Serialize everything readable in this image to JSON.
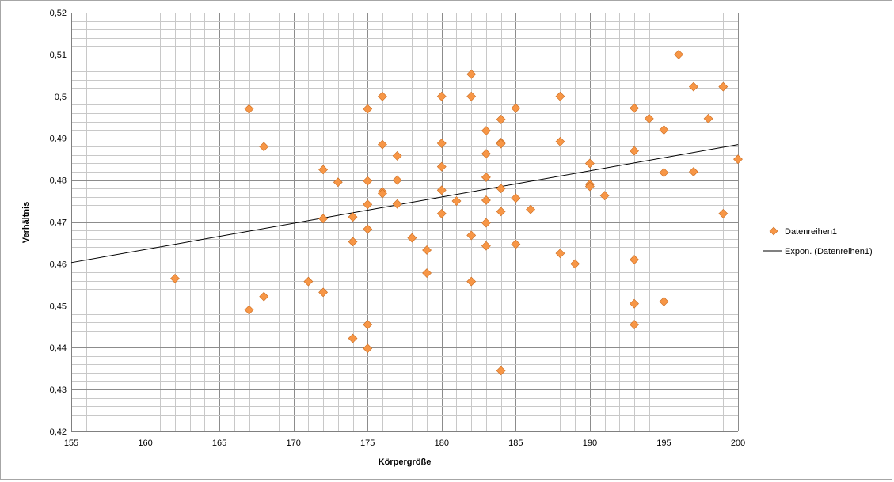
{
  "chart_data": {
    "type": "scatter",
    "title": "",
    "xlabel": "Körpergröße",
    "ylabel": "Verhältnis",
    "xlim": [
      155,
      200
    ],
    "ylim": [
      0.42,
      0.52
    ],
    "x_ticks": [
      155,
      160,
      165,
      170,
      175,
      180,
      185,
      190,
      195,
      200
    ],
    "x_tick_labels": [
      "155",
      "160",
      "165",
      "170",
      "175",
      "180",
      "185",
      "190",
      "195",
      "200"
    ],
    "y_ticks": [
      0.42,
      0.43,
      0.44,
      0.45,
      0.46,
      0.47,
      0.48,
      0.49,
      0.5,
      0.51,
      0.52
    ],
    "y_tick_labels": [
      "0,42",
      "0,43",
      "0,44",
      "0,45",
      "0,46",
      "0,47",
      "0,48",
      "0,49",
      "0,5",
      "0,51",
      "0,52"
    ],
    "major_x_step": 5,
    "minor_x_step": 1,
    "major_y_step": 0.01,
    "minor_y_step": 0.002,
    "grid": true,
    "legend_position": "right",
    "series": [
      {
        "name": "Datenreihen1",
        "marker": "diamond",
        "color": "#f79646",
        "points": [
          [
            162,
            0.4565
          ],
          [
            167,
            0.497
          ],
          [
            167,
            0.449
          ],
          [
            168,
            0.488
          ],
          [
            168,
            0.4522
          ],
          [
            171,
            0.4558
          ],
          [
            172,
            0.4825
          ],
          [
            172,
            0.4708
          ],
          [
            172,
            0.4532
          ],
          [
            173,
            0.4795
          ],
          [
            174,
            0.4712
          ],
          [
            174,
            0.4653
          ],
          [
            174,
            0.4422
          ],
          [
            175,
            0.497
          ],
          [
            175,
            0.4798
          ],
          [
            175,
            0.4742
          ],
          [
            175,
            0.4683
          ],
          [
            175,
            0.4455
          ],
          [
            175,
            0.4398
          ],
          [
            176,
            0.5
          ],
          [
            176,
            0.4885
          ],
          [
            176,
            0.4772
          ],
          [
            176,
            0.4768
          ],
          [
            177,
            0.4858
          ],
          [
            177,
            0.48
          ],
          [
            177,
            0.4743
          ],
          [
            178,
            0.4662
          ],
          [
            179,
            0.4633
          ],
          [
            179,
            0.4578
          ],
          [
            180,
            0.5
          ],
          [
            180,
            0.4888
          ],
          [
            180,
            0.4832
          ],
          [
            180,
            0.4776
          ],
          [
            180,
            0.472
          ],
          [
            181,
            0.475
          ],
          [
            182,
            0.5053
          ],
          [
            182,
            0.5
          ],
          [
            182,
            0.4668
          ],
          [
            182,
            0.4558
          ],
          [
            183,
            0.4918
          ],
          [
            183,
            0.4863
          ],
          [
            183,
            0.4807
          ],
          [
            183,
            0.4752
          ],
          [
            183,
            0.4698
          ],
          [
            183,
            0.4643
          ],
          [
            184,
            0.4945
          ],
          [
            184,
            0.489
          ],
          [
            184,
            0.4887
          ],
          [
            184,
            0.478
          ],
          [
            184,
            0.4725
          ],
          [
            184,
            0.4345
          ],
          [
            185,
            0.4972
          ],
          [
            185,
            0.4757
          ],
          [
            185,
            0.4647
          ],
          [
            186,
            0.473
          ],
          [
            188,
            0.5
          ],
          [
            188,
            0.4892
          ],
          [
            188,
            0.4625
          ],
          [
            189,
            0.46
          ],
          [
            190,
            0.484
          ],
          [
            190,
            0.479
          ],
          [
            190,
            0.4785
          ],
          [
            191,
            0.4763
          ],
          [
            193,
            0.4972
          ],
          [
            193,
            0.487
          ],
          [
            193,
            0.461
          ],
          [
            193,
            0.4505
          ],
          [
            193,
            0.4455
          ],
          [
            194,
            0.4947
          ],
          [
            195,
            0.492
          ],
          [
            195,
            0.4818
          ],
          [
            195,
            0.451
          ],
          [
            196,
            0.51
          ],
          [
            197,
            0.5023
          ],
          [
            197,
            0.482
          ],
          [
            198,
            0.4947
          ],
          [
            199,
            0.5023
          ],
          [
            199,
            0.472
          ],
          [
            200,
            0.485
          ]
        ]
      }
    ],
    "trendline": {
      "name": "Expon. (Datenreihen1)",
      "type": "exponential",
      "color": "#000000",
      "start": [
        155,
        0.4603
      ],
      "end": [
        200,
        0.4885
      ]
    }
  },
  "legend": {
    "series_label": "Datenreihen1",
    "trend_label": "Expon. (Datenreihen1)"
  }
}
